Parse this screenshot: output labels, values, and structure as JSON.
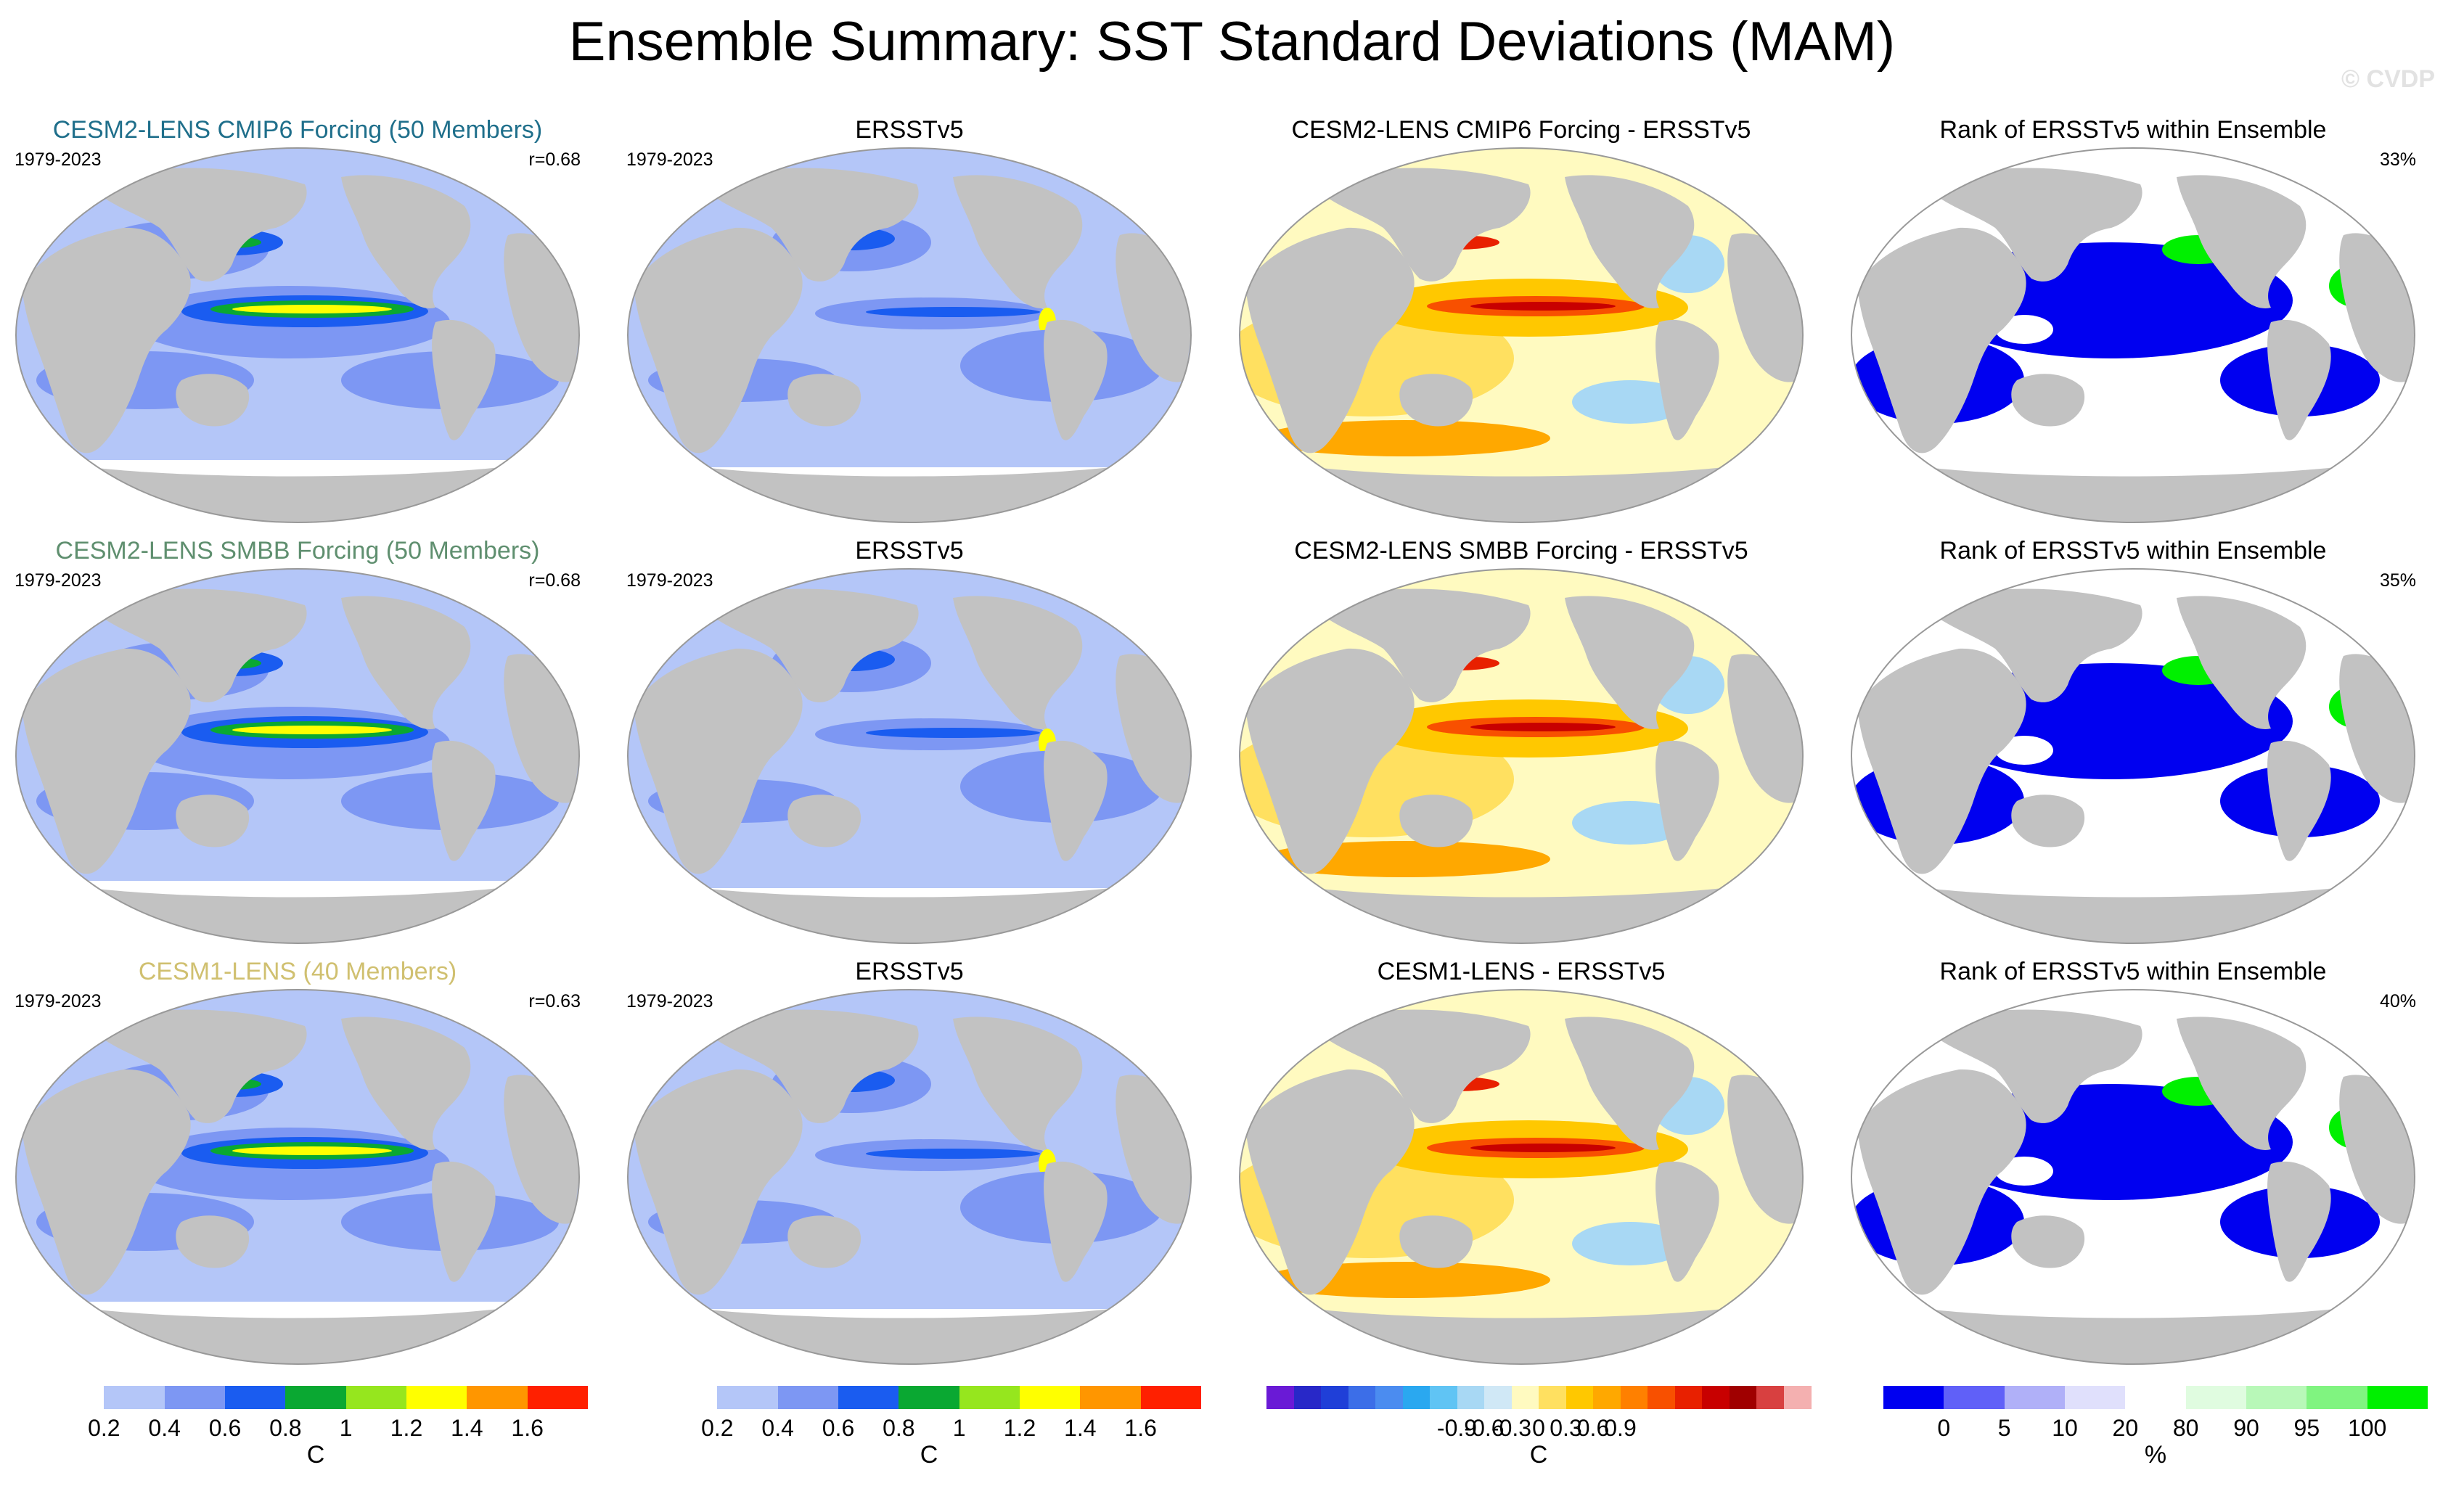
{
  "title": "Ensemble Summary: SST Standard Deviations (MAM)",
  "watermark": "© CVDP",
  "colors": {
    "land": "#c2c2c2",
    "ocean_default": "#b3c6f5",
    "title_cmip6": "#1f6f8b",
    "title_smbb": "#5f8f6f",
    "title_cesm1": "#d0c070"
  },
  "rows": [
    {
      "model": {
        "title": "CESM2-LENS CMIP6 Forcing (50 Members)",
        "period": "1979-2023",
        "corr": "r=0.68"
      },
      "obs": {
        "title": "ERSSTv5",
        "period": "1979-2023"
      },
      "diff": {
        "title": "CESM2-LENS CMIP6 Forcing - ERSSTv5"
      },
      "rank": {
        "title": "Rank of ERSSTv5 within Ensemble",
        "pct": "33%"
      }
    },
    {
      "model": {
        "title": "CESM2-LENS SMBB Forcing (50 Members)",
        "period": "1979-2023",
        "corr": "r=0.68"
      },
      "obs": {
        "title": "ERSSTv5",
        "period": "1979-2023"
      },
      "diff": {
        "title": "CESM2-LENS SMBB Forcing - ERSSTv5"
      },
      "rank": {
        "title": "Rank of ERSSTv5 within Ensemble",
        "pct": "35%"
      }
    },
    {
      "model": {
        "title": "CESM1-LENS (40 Members)",
        "period": "1979-2023",
        "corr": "r=0.63"
      },
      "obs": {
        "title": "ERSSTv5",
        "period": "1979-2023"
      },
      "diff": {
        "title": "CESM1-LENS - ERSSTv5"
      },
      "rank": {
        "title": "Rank of ERSSTv5 within Ensemble",
        "pct": "40%"
      }
    }
  ],
  "colorbars": {
    "sd": {
      "colors": [
        "#ffffff",
        "#b4c6f8",
        "#7d97f3",
        "#1a5cf0",
        "#0aa832",
        "#96e61e",
        "#ffff00",
        "#ff9600",
        "#ff2000"
      ],
      "labels": [
        "0.2",
        "0.4",
        "0.6",
        "0.8",
        "1",
        "1.2",
        "1.4",
        "1.6"
      ],
      "unit": "C"
    },
    "diff": {
      "colors": [
        "#6a1ad6",
        "#2828c8",
        "#1f3fd8",
        "#3c6ee8",
        "#4b8cf0",
        "#2aa8f0",
        "#60c4f4",
        "#a8d8f4",
        "#d0e8f6",
        "#fffac0",
        "#ffe060",
        "#ffc800",
        "#ffa800",
        "#ff8000",
        "#f85000",
        "#e82000",
        "#c80000",
        "#a00000",
        "#d84040",
        "#f4b0b0"
      ],
      "labels": [
        "-0.9",
        "-0.6",
        "-0.3",
        "0",
        "0.3",
        "0.6",
        "0.9"
      ],
      "unit": "C"
    },
    "rank": {
      "colors": [
        "#0000f0",
        "#6060f8",
        "#b0b0f8",
        "#e0e0fc",
        "#ffffff",
        "#e0fce0",
        "#b8f8b8",
        "#80f480",
        "#00f000"
      ],
      "labels": [
        "0",
        "5",
        "10",
        "20",
        "80",
        "90",
        "95",
        "100"
      ],
      "unit": "%"
    }
  }
}
